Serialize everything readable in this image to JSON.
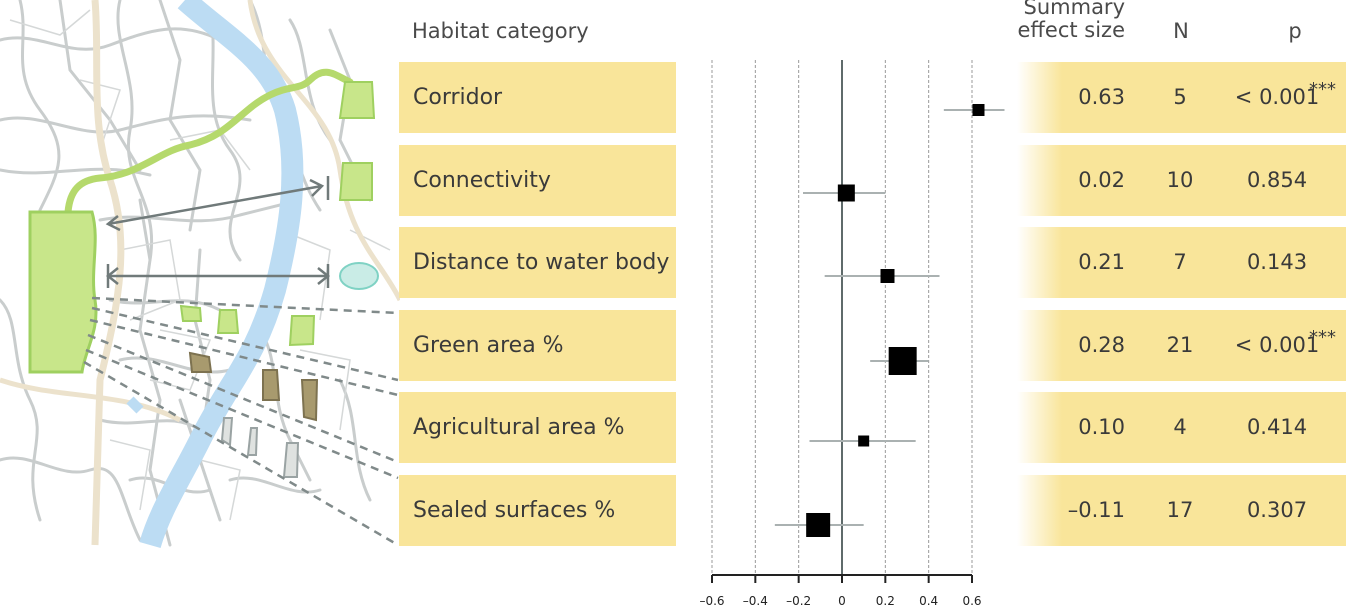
{
  "header": {
    "category": "Habitat category",
    "effect": "Summary\neffect size",
    "effect_line1": "Summary",
    "effect_line2": "effect size",
    "n": "N",
    "p": "p"
  },
  "rows": [
    {
      "label": "Corridor",
      "effect": "0.63",
      "n": "5",
      "p": "< 0.001",
      "stars": "***"
    },
    {
      "label": "Connectivity",
      "effect": "0.02",
      "n": "10",
      "p": "0.854",
      "stars": ""
    },
    {
      "label": "Distance to water body",
      "effect": "0.21",
      "n": "7",
      "p": "0.143",
      "stars": ""
    },
    {
      "label": "Green area %",
      "effect": "0.28",
      "n": "21",
      "p": "< 0.001",
      "stars": "***"
    },
    {
      "label": "Agricultural area %",
      "effect": "0.10",
      "n": "4",
      "p": "0.414",
      "stars": ""
    },
    {
      "label": "Sealed surfaces %",
      "effect": "–0.11",
      "n": "17",
      "p": "0.307",
      "stars": ""
    }
  ],
  "colors": {
    "band": "#f9e59a",
    "green": "#c8e68a",
    "green_stroke": "#9fd060",
    "water": "#bcdcf3",
    "brown": "#a89a6e",
    "grey_patch": "#dfe2e0",
    "arrow": "#707a7a",
    "road": "#c8cccc"
  },
  "chart_data": {
    "type": "forest",
    "xlim": [
      -0.6,
      0.6
    ],
    "xticks": [
      "–0.6",
      "–0.4",
      "–0.2",
      "0",
      "0.2",
      "0.4",
      "0.6"
    ],
    "tick_values": [
      -0.6,
      -0.4,
      -0.2,
      0,
      0.2,
      0.4,
      0.6
    ],
    "grid": true,
    "series": [
      {
        "category": "Corridor",
        "estimate": 0.63,
        "ci": [
          0.47,
          0.75
        ],
        "n": 5
      },
      {
        "category": "Connectivity",
        "estimate": 0.02,
        "ci": [
          -0.18,
          0.2
        ],
        "n": 10
      },
      {
        "category": "Distance to water body",
        "estimate": 0.21,
        "ci": [
          -0.08,
          0.45
        ],
        "n": 7
      },
      {
        "category": "Green area %",
        "estimate": 0.28,
        "ci": [
          0.13,
          0.4
        ],
        "n": 21
      },
      {
        "category": "Agricultural area %",
        "estimate": 0.1,
        "ci": [
          -0.15,
          0.34
        ],
        "n": 4
      },
      {
        "category": "Sealed surfaces %",
        "estimate": -0.11,
        "ci": [
          -0.31,
          0.1
        ],
        "n": 17
      }
    ]
  }
}
